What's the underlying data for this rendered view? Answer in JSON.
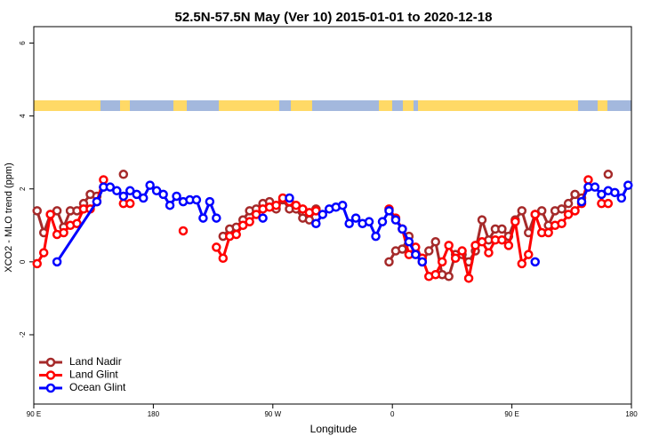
{
  "chart_data": {
    "type": "line",
    "title": "52.5N-57.5N May (Ver 10)   2015-01-01 to 2020-12-18",
    "x_label": "Longitude",
    "y_label": "XCO2 - MLO trend (ppm)",
    "xlim": [
      90,
      540
    ],
    "xticks": [
      {
        "value": 90,
        "label": "90 E"
      },
      {
        "value": 180,
        "label": "180"
      },
      {
        "value": 270,
        "label": "90 W"
      },
      {
        "value": 360,
        "label": "0"
      },
      {
        "value": 450,
        "label": "90 E"
      },
      {
        "value": 540,
        "label": "180"
      }
    ],
    "ylim": [
      -3.9,
      6.45
    ],
    "yticks": [
      -2,
      0,
      2,
      4,
      6
    ],
    "legend": "bottom-left",
    "series": [
      {
        "name": "Land Nadir",
        "color": "#a52a2a",
        "x": [
          92.5,
          97.5,
          102.5,
          107.5,
          112.5,
          117.5,
          122.5,
          127.5,
          132.5,
          137.5,
          142.5,
          147.5,
          157.5,
          227.5,
          232.5,
          237.5,
          242.5,
          247.5,
          252.5,
          257.5,
          262.5,
          267.5,
          272.5,
          277.5,
          282.5,
          287.5,
          292.5,
          297.5,
          302.5,
          327.5,
          357.5,
          362.5,
          367.5,
          372.5,
          377.5,
          382.5,
          387.5,
          392.5,
          397.5,
          402.5,
          407.5,
          412.5,
          417.5,
          422.5,
          427.5,
          432.5,
          437.5,
          442.5,
          447.5,
          452.5,
          457.5,
          462.5,
          467.5,
          472.5,
          477.5,
          482.5,
          487.5,
          492.5,
          497.5,
          502.5,
          507.5,
          512.5,
          522.5
        ],
        "values": [
          1.4,
          0.8,
          1.3,
          1.4,
          0.95,
          1.4,
          1.4,
          1.6,
          1.85,
          1.8,
          2.05,
          null,
          2.4,
          null,
          0.7,
          0.9,
          0.95,
          1.15,
          1.4,
          1.45,
          1.6,
          1.65,
          1.45,
          1.7,
          1.45,
          1.45,
          1.2,
          1.15,
          1.45,
          null,
          0.0,
          0.3,
          0.35,
          0.7,
          0.25,
          0.0,
          0.3,
          0.55,
          -0.35,
          -0.4,
          0.2,
          0.2,
          0.0,
          0.3,
          1.15,
          0.6,
          0.9,
          0.9,
          0.7,
          1.15,
          1.4,
          0.8,
          1.3,
          1.4,
          1.0,
          1.4,
          1.45,
          1.6,
          1.85,
          1.75,
          2.05,
          null,
          2.4
        ]
      },
      {
        "name": "Land Glint",
        "color": "#ff0000",
        "x": [
          92.5,
          97.5,
          102.5,
          107.5,
          112.5,
          117.5,
          122.5,
          127.5,
          132.5,
          137.5,
          142.5,
          147.5,
          157.5,
          162.5,
          182.5,
          202.5,
          217.5,
          227.5,
          232.5,
          237.5,
          242.5,
          247.5,
          252.5,
          257.5,
          262.5,
          267.5,
          272.5,
          277.5,
          282.5,
          287.5,
          292.5,
          297.5,
          302.5,
          327.5,
          357.5,
          362.5,
          367.5,
          372.5,
          377.5,
          382.5,
          387.5,
          392.5,
          397.5,
          402.5,
          407.5,
          412.5,
          417.5,
          422.5,
          427.5,
          432.5,
          437.5,
          442.5,
          447.5,
          452.5,
          457.5,
          462.5,
          467.5,
          472.5,
          477.5,
          482.5,
          487.5,
          492.5,
          497.5,
          502.5,
          507.5,
          512.5,
          517.5,
          522.5
        ],
        "values": [
          -0.05,
          0.25,
          1.3,
          0.75,
          0.8,
          1.0,
          1.05,
          1.45,
          1.45,
          1.65,
          2.25,
          null,
          1.6,
          1.6,
          null,
          0.85,
          null,
          0.4,
          0.1,
          0.7,
          0.75,
          1.0,
          1.1,
          1.3,
          1.45,
          1.5,
          1.55,
          1.75,
          1.65,
          1.55,
          1.45,
          1.35,
          1.4,
          null,
          1.45,
          1.2,
          0.9,
          0.2,
          0.4,
          0.1,
          -0.4,
          -0.35,
          0.0,
          0.45,
          0.1,
          0.3,
          -0.45,
          0.45,
          0.55,
          0.25,
          0.6,
          0.6,
          0.45,
          1.1,
          -0.05,
          0.2,
          1.3,
          0.8,
          0.8,
          1.0,
          1.05,
          1.3,
          1.4,
          1.6,
          2.25,
          null,
          1.6,
          1.6
        ]
      },
      {
        "name": "Ocean Glint",
        "color": "#0000ff",
        "x": [
          107.5,
          137.5,
          142.5,
          147.5,
          152.5,
          157.5,
          162.5,
          167.5,
          172.5,
          177.5,
          182.5,
          187.5,
          192.5,
          197.5,
          202.5,
          207.5,
          212.5,
          217.5,
          222.5,
          227.5,
          247.5,
          262.5,
          272.5,
          282.5,
          292.5,
          302.5,
          307.5,
          312.5,
          317.5,
          322.5,
          327.5,
          332.5,
          337.5,
          342.5,
          347.5,
          352.5,
          357.5,
          362.5,
          367.5,
          372.5,
          377.5,
          382.5,
          422.5,
          467.5,
          487.5,
          502.5,
          507.5,
          512.5,
          517.5,
          522.5,
          527.5,
          532.5,
          537.5
        ],
        "values": [
          0.0,
          1.65,
          2.05,
          2.05,
          1.95,
          1.8,
          1.95,
          1.85,
          1.75,
          2.1,
          1.95,
          1.85,
          1.55,
          1.8,
          1.65,
          1.7,
          1.7,
          1.2,
          1.65,
          1.2,
          null,
          1.2,
          null,
          1.75,
          null,
          1.05,
          1.3,
          1.45,
          1.5,
          1.55,
          1.05,
          1.2,
          1.05,
          1.1,
          0.7,
          1.1,
          1.4,
          1.15,
          0.9,
          0.55,
          0.2,
          0.0,
          null,
          0.0,
          null,
          1.65,
          2.05,
          2.05,
          1.85,
          1.95,
          1.9,
          1.75,
          2.1
        ]
      }
    ]
  }
}
